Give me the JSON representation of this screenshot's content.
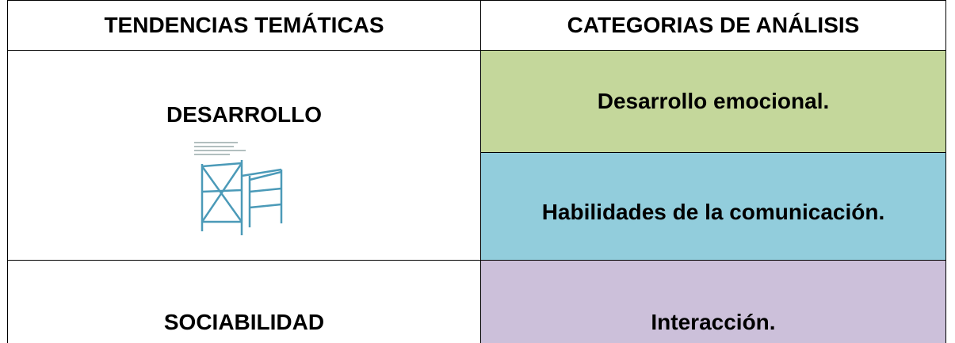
{
  "table": {
    "header": [
      "TENDENCIAS TEMÁTICAS",
      "CATEGORIAS DE ANÁLISIS"
    ],
    "rows": [
      {
        "theme": "DESARROLLO",
        "categories": [
          "Desarrollo emocional.",
          "Habilidades de la comunicación."
        ]
      },
      {
        "theme": "SOCIABILIDAD",
        "categories": [
          "Interacción."
        ]
      }
    ]
  }
}
